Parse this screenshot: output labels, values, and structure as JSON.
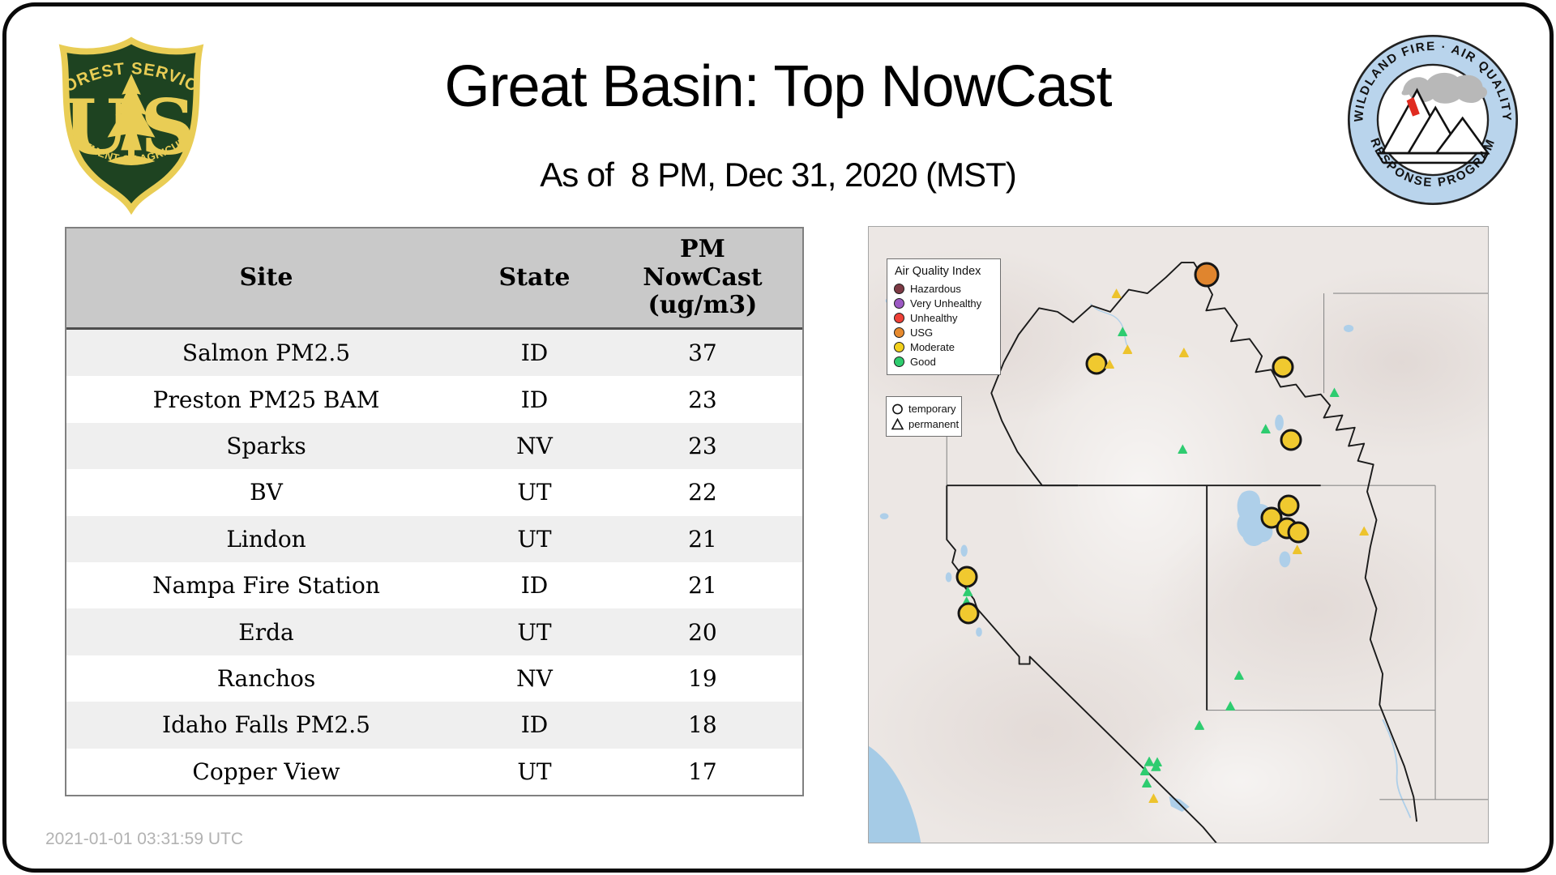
{
  "header": {
    "title": "Great Basin: Top NowCast",
    "subtitle": "As of  8 PM, Dec 31, 2020 (MST)",
    "usfs_logo": {
      "arc_top": "FOREST SERVICE",
      "monogram_left": "U",
      "monogram_right": "S",
      "arc_bottom": "DEPARTMENT OF AGRICULTURE",
      "shield_green": "#1e4321",
      "shield_gold": "#e9cd55"
    },
    "wfaqrp_logo": {
      "arc_top": "WILDLAND FIRE · AIR QUALITY",
      "arc_bottom": "RESPONSE PROGRAM",
      "ring_blue": "#b9d4ec"
    }
  },
  "table": {
    "columns": [
      "Site",
      "State",
      "PM NowCast (ug/m3)"
    ],
    "rows": [
      {
        "site": "Salmon PM2.5",
        "state": "ID",
        "value": "37"
      },
      {
        "site": "Preston PM25 BAM",
        "state": "ID",
        "value": "23"
      },
      {
        "site": "Sparks",
        "state": "NV",
        "value": "23"
      },
      {
        "site": "BV",
        "state": "UT",
        "value": "22"
      },
      {
        "site": "Lindon",
        "state": "UT",
        "value": "21"
      },
      {
        "site": "Nampa Fire Station",
        "state": "ID",
        "value": "21"
      },
      {
        "site": "Erda",
        "state": "UT",
        "value": "20"
      },
      {
        "site": "Ranchos",
        "state": "NV",
        "value": "19"
      },
      {
        "site": "Idaho Falls PM2.5",
        "state": "ID",
        "value": "18"
      },
      {
        "site": "Copper View",
        "state": "UT",
        "value": "17"
      }
    ]
  },
  "map": {
    "aqi_legend": {
      "title": "Air Quality Index",
      "items": [
        {
          "label": "Hazardous",
          "color": "#7d3a44"
        },
        {
          "label": "Very Unhealthy",
          "color": "#9c59c3"
        },
        {
          "label": "Unhealthy",
          "color": "#ee4037"
        },
        {
          "label": "USG",
          "color": "#e78a2e"
        },
        {
          "label": "Moderate",
          "color": "#f2d01c"
        },
        {
          "label": "Good",
          "color": "#2ecc6e"
        }
      ]
    },
    "marker_legend": {
      "items": [
        {
          "label": "temporary",
          "shape": "circle"
        },
        {
          "label": "permanent",
          "shape": "triangle"
        }
      ]
    },
    "marker_colors": {
      "usg": "#e0852e",
      "moderate_large": "#f0c92f",
      "moderate_small": "#edc32c",
      "good_small": "#2ecc70"
    },
    "markers": [
      {
        "type": "usg-lg",
        "x": 54.6,
        "y": 7.7
      },
      {
        "type": "mod-sm",
        "x": 40.0,
        "y": 10.8
      },
      {
        "type": "good-sm",
        "x": 41.0,
        "y": 17.0
      },
      {
        "type": "mod-sm",
        "x": 41.8,
        "y": 19.9
      },
      {
        "type": "mod-sm",
        "x": 50.9,
        "y": 20.4
      },
      {
        "type": "mod-lg",
        "x": 36.8,
        "y": 22.2
      },
      {
        "type": "mod-sm",
        "x": 38.9,
        "y": 22.3
      },
      {
        "type": "mod-lg",
        "x": 66.9,
        "y": 22.7
      },
      {
        "type": "good-sm",
        "x": 75.2,
        "y": 26.9
      },
      {
        "type": "good-sm",
        "x": 64.1,
        "y": 32.8
      },
      {
        "type": "good-sm",
        "x": 50.7,
        "y": 36.1
      },
      {
        "type": "mod-lg",
        "x": 68.2,
        "y": 34.6
      },
      {
        "type": "mod-lg",
        "x": 65.0,
        "y": 47.3
      },
      {
        "type": "mod-lg",
        "x": 67.8,
        "y": 45.2
      },
      {
        "type": "mod-lg",
        "x": 67.6,
        "y": 49.0
      },
      {
        "type": "mod-lg",
        "x": 69.4,
        "y": 49.6
      },
      {
        "type": "mod-sm",
        "x": 69.2,
        "y": 52.4
      },
      {
        "type": "mod-sm",
        "x": 80.0,
        "y": 49.4
      },
      {
        "type": "mod-lg",
        "x": 15.8,
        "y": 56.9
      },
      {
        "type": "good-sm",
        "x": 16.0,
        "y": 59.2
      },
      {
        "type": "good-sm",
        "x": 15.8,
        "y": 60.8
      },
      {
        "type": "mod-lg",
        "x": 16.1,
        "y": 62.8
      },
      {
        "type": "good-sm",
        "x": 59.8,
        "y": 72.8
      },
      {
        "type": "good-sm",
        "x": 58.4,
        "y": 77.8
      },
      {
        "type": "good-sm",
        "x": 53.4,
        "y": 80.9
      },
      {
        "type": "good-sm",
        "x": 45.3,
        "y": 86.8
      },
      {
        "type": "good-sm",
        "x": 46.4,
        "y": 87.6
      },
      {
        "type": "good-sm",
        "x": 44.6,
        "y": 88.3
      },
      {
        "type": "good-sm",
        "x": 46.6,
        "y": 86.9
      },
      {
        "type": "good-sm",
        "x": 44.9,
        "y": 90.3
      },
      {
        "type": "mod-sm",
        "x": 46.0,
        "y": 92.8
      }
    ]
  },
  "footer": {
    "timestamp": "2021-01-01 03:31:59 UTC"
  }
}
